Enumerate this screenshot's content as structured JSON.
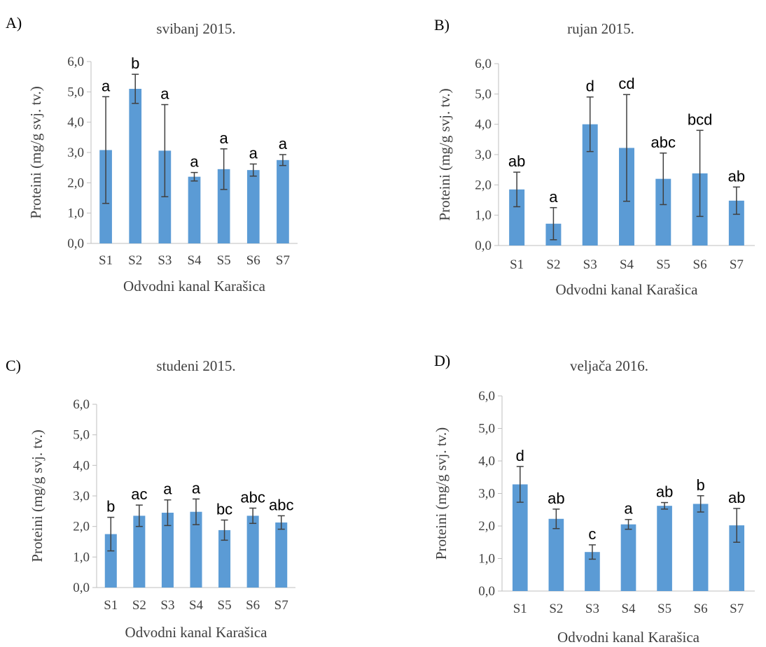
{
  "figure": {
    "panels": [
      "A)",
      "B)",
      "C)",
      "D)"
    ]
  },
  "chart_data": [
    {
      "type": "bar",
      "panel": "A)",
      "title": "svibanj 2015.",
      "xlabel": "Odvodni kanal Karašica",
      "ylabel": "Proteini (mg/g svj. tv.)",
      "ylim": [
        0,
        6
      ],
      "yticks": [
        "0,0",
        "1,0",
        "2,0",
        "3,0",
        "4,0",
        "5,0",
        "6,0"
      ],
      "categories": [
        "S1",
        "S2",
        "S3",
        "S4",
        "S5",
        "S6",
        "S7"
      ],
      "values": [
        3.08,
        5.1,
        3.06,
        2.2,
        2.45,
        2.42,
        2.75
      ],
      "error": [
        1.76,
        0.48,
        1.52,
        0.14,
        0.67,
        0.2,
        0.18
      ],
      "labels": [
        "a",
        "b",
        "a",
        "a",
        "a",
        "a",
        "a"
      ],
      "bar_color": "#5B9BD5",
      "grid": false
    },
    {
      "type": "bar",
      "panel": "B)",
      "title": "rujan 2015.",
      "xlabel": "Odvodni kanal Karašica",
      "ylabel": "Proteini (mg/g svj. tv.)",
      "ylim": [
        0,
        6
      ],
      "yticks": [
        "0,0",
        "1,0",
        "2,0",
        "3,0",
        "4,0",
        "5,0",
        "6,0"
      ],
      "categories": [
        "S1",
        "S2",
        "S3",
        "S4",
        "S5",
        "S6",
        "S7"
      ],
      "values": [
        1.85,
        0.72,
        4.0,
        3.22,
        2.2,
        2.38,
        1.48
      ],
      "error": [
        0.57,
        0.53,
        0.9,
        1.76,
        0.85,
        1.42,
        0.45
      ],
      "labels": [
        "ab",
        "a",
        "d",
        "cd",
        "abc",
        "bcd",
        "ab"
      ],
      "bar_color": "#5B9BD5",
      "grid": false
    },
    {
      "type": "bar",
      "panel": "C)",
      "title": "studeni 2015.",
      "xlabel": "Odvodni kanal Karašica",
      "ylabel": "Proteini (mg/g svj. tv.)",
      "ylim": [
        0,
        6
      ],
      "yticks": [
        "0,0",
        "1,0",
        "2,0",
        "3,0",
        "4,0",
        "5,0",
        "6,0"
      ],
      "categories": [
        "S1",
        "S2",
        "S3",
        "S4",
        "S5",
        "S6",
        "S7"
      ],
      "values": [
        1.75,
        2.35,
        2.45,
        2.48,
        1.88,
        2.35,
        2.13
      ],
      "error": [
        0.55,
        0.35,
        0.42,
        0.42,
        0.33,
        0.25,
        0.22
      ],
      "labels": [
        "b",
        "ac",
        "a",
        "a",
        "bc",
        "abc",
        "abc"
      ],
      "bar_color": "#5B9BD5",
      "grid": false
    },
    {
      "type": "bar",
      "panel": "D)",
      "title": "veljača 2016.",
      "xlabel": "Odvodni kanal Karašica",
      "ylabel": "Proteini (mg/g svj. tv.)",
      "ylim": [
        0,
        6
      ],
      "yticks": [
        "0,0",
        "1,0",
        "2,0",
        "3,0",
        "4,0",
        "5,0",
        "6,0"
      ],
      "categories": [
        "S1",
        "S2",
        "S3",
        "S4",
        "S5",
        "S6",
        "S7"
      ],
      "values": [
        3.28,
        2.22,
        1.2,
        2.05,
        2.62,
        2.68,
        2.02
      ],
      "error": [
        0.55,
        0.3,
        0.22,
        0.15,
        0.1,
        0.25,
        0.52
      ],
      "labels": [
        "d",
        "ab",
        "c",
        "a",
        "ab",
        "b",
        "ab"
      ],
      "bar_color": "#5B9BD5",
      "grid": false
    }
  ]
}
